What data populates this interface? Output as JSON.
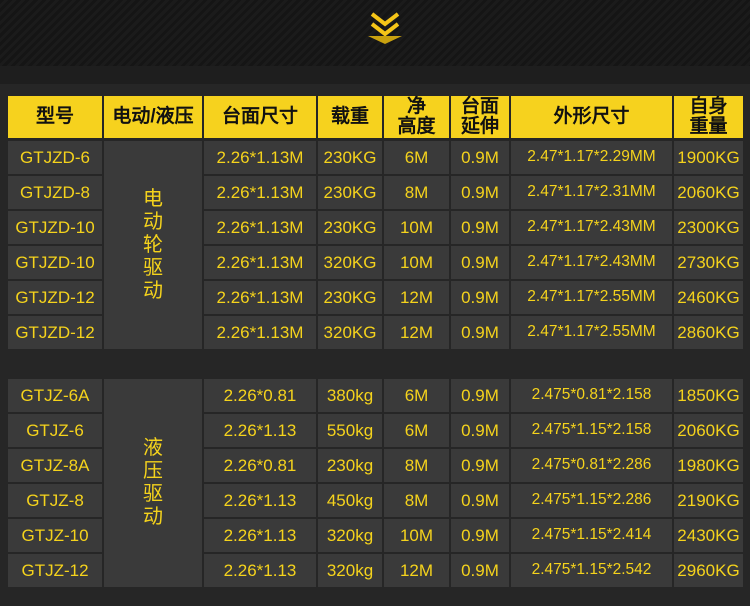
{
  "header": [
    "型号",
    "电动/液压",
    "台面尺寸",
    "载重",
    [
      "净",
      "高度"
    ],
    [
      "台面",
      "延伸"
    ],
    "外形尺寸",
    [
      "自身",
      "重量"
    ]
  ],
  "groups": [
    {
      "drive": "电动轮驱动",
      "rows": [
        [
          "GTJZD-6",
          "2.26*1.13M",
          "230KG",
          "6M",
          "0.9M",
          "2.47*1.17*2.29MM",
          "1900KG"
        ],
        [
          "GTJZD-8",
          "2.26*1.13M",
          "230KG",
          "8M",
          "0.9M",
          "2.47*1.17*2.31MM",
          "2060KG"
        ],
        [
          "GTJZD-10",
          "2.26*1.13M",
          "230KG",
          "10M",
          "0.9M",
          "2.47*1.17*2.43MM",
          "2300KG"
        ],
        [
          "GTJZD-10",
          "2.26*1.13M",
          "320KG",
          "10M",
          "0.9M",
          "2.47*1.17*2.43MM",
          "2730KG"
        ],
        [
          "GTJZD-12",
          "2.26*1.13M",
          "230KG",
          "12M",
          "0.9M",
          "2.47*1.17*2.55MM",
          "2460KG"
        ],
        [
          "GTJZD-12",
          "2.26*1.13M",
          "320KG",
          "12M",
          "0.9M",
          "2.47*1.17*2.55MM",
          "2860KG"
        ]
      ]
    },
    {
      "drive": "液压驱动",
      "rows": [
        [
          "GTJZ-6A",
          "2.26*0.81",
          "380kg",
          "6M",
          "0.9M",
          "2.475*0.81*2.158",
          "1850KG"
        ],
        [
          "GTJZ-6",
          "2.26*1.13",
          "550kg",
          "6M",
          "0.9M",
          "2.475*1.15*2.158",
          "2060KG"
        ],
        [
          "GTJZ-8A",
          "2.26*0.81",
          "230kg",
          "8M",
          "0.9M",
          "2.475*0.81*2.286",
          "1980KG"
        ],
        [
          "GTJZ-8",
          "2.26*1.13",
          "450kg",
          "8M",
          "0.9M",
          "2.475*1.15*2.286",
          "2190KG"
        ],
        [
          "GTJZ-10",
          "2.26*1.13",
          "320kg",
          "10M",
          "0.9M",
          "2.475*1.15*2.414",
          "2430KG"
        ],
        [
          "GTJZ-12",
          "2.26*1.13",
          "320kg",
          "12M",
          "0.9M",
          "2.475*1.15*2.542",
          "2960KG"
        ]
      ]
    }
  ]
}
